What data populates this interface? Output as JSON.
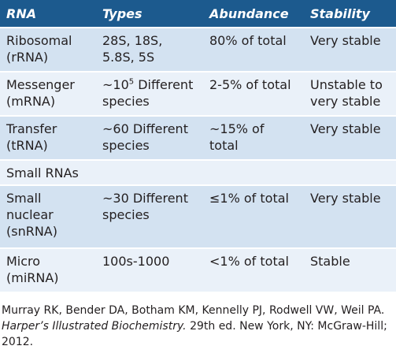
{
  "table": {
    "header": [
      "RNA",
      "Types",
      "Abundance",
      "Stability"
    ],
    "rows": [
      [
        [
          "Ribosomal",
          "(rRNA)"
        ],
        [
          "28S, 18S,",
          "5.8S, 5S"
        ],
        [
          "80% of total"
        ],
        [
          "Very stable"
        ]
      ],
      [
        [
          "Messenger",
          "(mRNA)"
        ],
        [
          {
            "base": "~10",
            "sup": "5",
            "rest": " Different"
          },
          "species"
        ],
        [
          "2-5% of total"
        ],
        [
          "Unstable to",
          "very stable"
        ]
      ],
      [
        [
          "Transfer",
          "(tRNA)"
        ],
        [
          "~60 Different",
          "species"
        ],
        [
          "~15% of",
          "total"
        ],
        [
          "Very stable"
        ]
      ],
      [
        [
          "Small RNAs"
        ]
      ],
      [
        [
          "Small",
          "nuclear",
          "(snRNA)"
        ],
        [
          "~30 Different",
          "species"
        ],
        [
          "≤1% of total"
        ],
        [
          "Very stable"
        ]
      ],
      [
        [
          "Micro",
          "(miRNA)"
        ],
        [
          "100s-1000"
        ],
        [
          "<1% of total"
        ],
        [
          "Stable"
        ]
      ]
    ]
  },
  "citation": {
    "authors": "Murray RK, Bender DA, Botham KM, Kennelly PJ, Rodwell VW, Weil PA.",
    "title": "Harper’s Illustrated Biochemistry.",
    "details": "29th ed. New York, NY: McGraw-Hill; 2012."
  }
}
